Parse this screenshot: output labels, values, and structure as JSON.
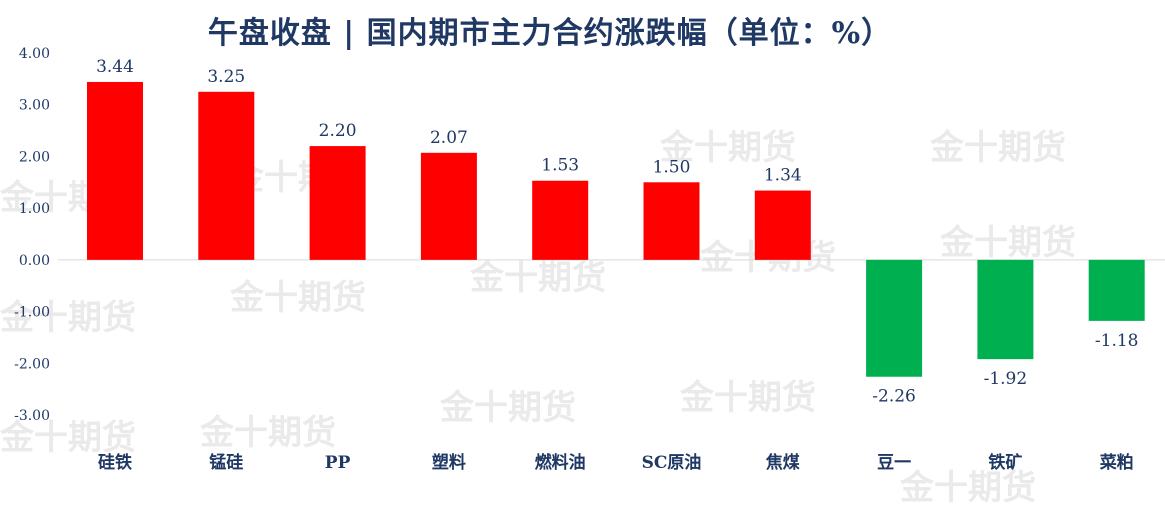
{
  "watermark": "金十期货",
  "chart_data": {
    "type": "bar",
    "title": "午盘收盘 | 国内期市主力合约涨跌幅（单位：%）",
    "categories": [
      "硅铁",
      "锰硅",
      "PP",
      "塑料",
      "燃料油",
      "SC原油",
      "焦煤",
      "豆一",
      "铁矿",
      "菜粕"
    ],
    "values": [
      3.44,
      3.25,
      2.2,
      2.07,
      1.53,
      1.5,
      1.34,
      -2.26,
      -1.92,
      -1.18
    ],
    "value_labels": [
      "3.44",
      "3.25",
      "2.20",
      "2.07",
      "1.53",
      "1.50",
      "1.34",
      "-2.26",
      "-1.92",
      "-1.18"
    ],
    "y_ticks": [
      "4.00",
      "3.00",
      "2.00",
      "1.00",
      "0.00",
      "-1.00",
      "-2.00",
      "-3.00"
    ],
    "ylim": [
      -3,
      4
    ],
    "grid": false,
    "colors": {
      "positive": "#ff0000",
      "negative": "#00b050",
      "text": "#1f3864"
    }
  }
}
